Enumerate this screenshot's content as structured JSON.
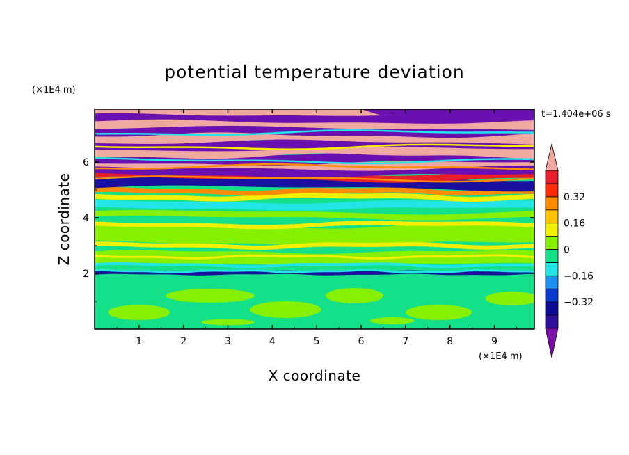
{
  "chart_data": {
    "type": "heatmap",
    "title": "potential temperature deviation",
    "xlabel": "X coordinate",
    "ylabel": "Z coordinate",
    "x_unit": "(×1E4 m)",
    "y_unit": "(×1E4 m)",
    "time_label": "t=1.404e+06 s",
    "xlim": [
      0,
      9.9
    ],
    "ylim": [
      0,
      7.9
    ],
    "x_ticks": [
      1,
      2,
      3,
      4,
      5,
      6,
      7,
      8,
      9
    ],
    "y_ticks": [
      2,
      4,
      6
    ],
    "x_tick_labels": [
      "1",
      "2",
      "3",
      "4",
      "5",
      "6",
      "7",
      "8",
      "9"
    ],
    "y_tick_labels": [
      "2",
      "4",
      "6"
    ],
    "colorbar": {
      "levels": [
        -0.48,
        -0.4,
        -0.32,
        -0.24,
        -0.16,
        -0.08,
        0,
        0.08,
        0.16,
        0.24,
        0.32,
        0.4,
        0.48
      ],
      "colors": [
        "#7b0fa8",
        "#2f0f9e",
        "#0b0b96",
        "#0a3bd0",
        "#1a8fef",
        "#22e6e6",
        "#15e08a",
        "#86f000",
        "#f2ef00",
        "#ffc400",
        "#ff8c00",
        "#ff2a00",
        "#e81f2a",
        "#f0a8a0"
      ],
      "labels": [
        "0.32",
        "0.16",
        "0",
        "-0.16",
        "-0.32"
      ],
      "label_values": [
        0.32,
        0.16,
        0,
        -0.16,
        -0.32
      ],
      "extend": "both"
    },
    "grid": false,
    "bands": [
      {
        "y": 7.8,
        "class": "pink"
      },
      {
        "y": 7.55,
        "class": "purple"
      },
      {
        "y": 7.3,
        "class": "pink"
      },
      {
        "y": 7.05,
        "class": "purple"
      },
      {
        "y": 6.8,
        "class": "pink"
      },
      {
        "y": 6.55,
        "class": "purple"
      },
      {
        "y": 6.3,
        "class": "pink"
      },
      {
        "y": 6.05,
        "class": "purple"
      },
      {
        "y": 5.8,
        "class": "pink"
      },
      {
        "y": 5.55,
        "class": "red"
      },
      {
        "y": 5.3,
        "class": "purple"
      },
      {
        "y": 5.05,
        "class": "orange"
      },
      {
        "y": 4.8,
        "class": "yellow"
      },
      {
        "y": 4.55,
        "class": "cyan"
      },
      {
        "y": 4.3,
        "class": "green"
      },
      {
        "y": 3.9,
        "class": "yellow"
      },
      {
        "y": 3.5,
        "class": "lime"
      },
      {
        "y": 3.1,
        "class": "yellow"
      },
      {
        "y": 2.6,
        "class": "yellow"
      },
      {
        "y": 2.35,
        "class": "cyan"
      },
      {
        "y": 2.0,
        "class": "navy"
      },
      {
        "y": 1.0,
        "class": "lime"
      }
    ]
  }
}
